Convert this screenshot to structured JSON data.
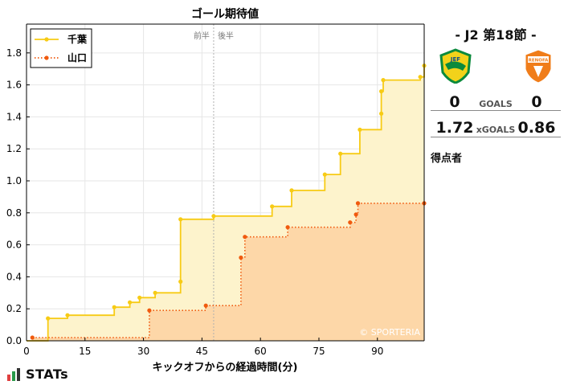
{
  "chart_data": {
    "type": "line",
    "title": "ゴール期待値",
    "xlabel": "キックオフからの経過時間(分)",
    "ylabel": "",
    "xlim": [
      0,
      102
    ],
    "ylim": [
      0,
      1.98
    ],
    "xticks": [
      0,
      15,
      30,
      45,
      60,
      75,
      90
    ],
    "yticks": [
      0.0,
      0.2,
      0.4,
      0.6,
      0.8,
      1.0,
      1.2,
      1.4,
      1.6,
      1.8
    ],
    "grid": true,
    "legend_position": "top-left",
    "half_divider": {
      "x": 48,
      "labels": [
        "前半",
        "後半"
      ]
    },
    "watermark": "© SPORTERIA",
    "series": [
      {
        "name": "千葉",
        "color": "#f7cb15",
        "fill": "#fdf3cc",
        "line_style": "solid",
        "points": [
          [
            0,
            0
          ],
          [
            5.5,
            0.14
          ],
          [
            10.5,
            0.16
          ],
          [
            22.5,
            0.21
          ],
          [
            26.5,
            0.24
          ],
          [
            29,
            0.27
          ],
          [
            33,
            0.3
          ],
          [
            39.5,
            0.37
          ],
          [
            39.5,
            0.76
          ],
          [
            48,
            0.78
          ],
          [
            63,
            0.84
          ],
          [
            68,
            0.94
          ],
          [
            76.5,
            1.04
          ],
          [
            80.5,
            1.17
          ],
          [
            85.5,
            1.32
          ],
          [
            91,
            1.42
          ],
          [
            91,
            1.56
          ],
          [
            91.5,
            1.63
          ],
          [
            101,
            1.65
          ],
          [
            102,
            1.72
          ]
        ]
      },
      {
        "name": "山口",
        "color": "#f05a0e",
        "fill": "#fdd7a8",
        "line_style": "dotted",
        "points": [
          [
            1.5,
            0.02
          ],
          [
            31.5,
            0.19
          ],
          [
            46,
            0.22
          ],
          [
            55,
            0.52
          ],
          [
            56,
            0.65
          ],
          [
            67,
            0.71
          ],
          [
            83,
            0.74
          ],
          [
            84.5,
            0.79
          ],
          [
            85,
            0.86
          ],
          [
            102,
            0.86
          ]
        ]
      }
    ]
  },
  "summary": {
    "matchday": "- J2 第18節 -",
    "home_goals": "0",
    "away_goals": "0",
    "goals_label": "GOALS",
    "home_xg": "1.72",
    "away_xg": "0.86",
    "xg_label": "xGOALS",
    "scorers_label": "得点者",
    "home_crest_text": "JEF",
    "away_crest_text": "RENOFA"
  },
  "brand": "STATs"
}
